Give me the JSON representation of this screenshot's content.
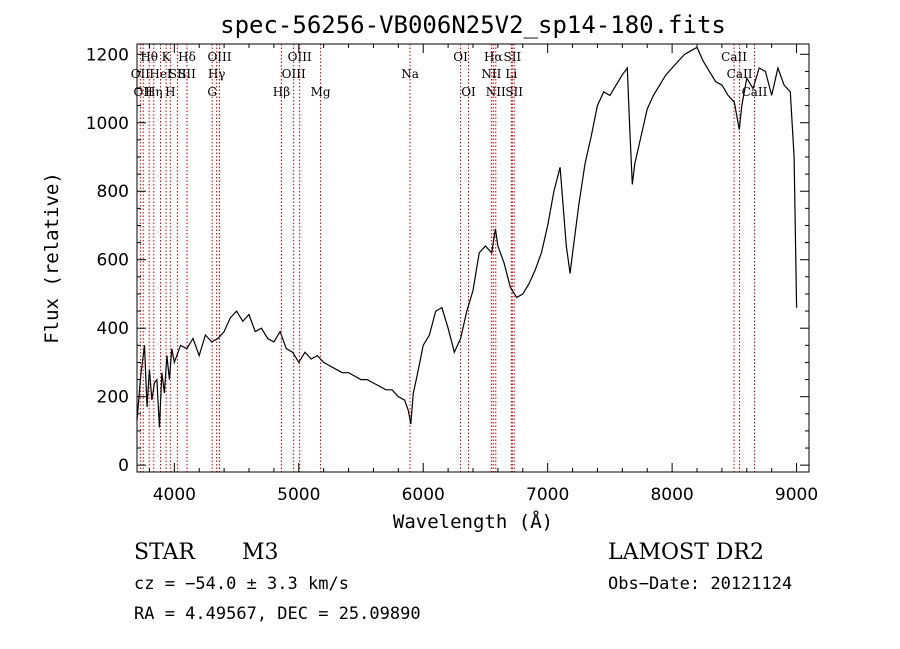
{
  "chart_data": {
    "type": "line",
    "title": "spec-56256-VB006N25V2_sp14-180.fits",
    "xlabel": "Wavelength (Å)",
    "ylabel": "Flux (relative)",
    "xlim": [
      3700,
      9100
    ],
    "ylim": [
      -20,
      1230
    ],
    "xticks": [
      4000,
      5000,
      6000,
      7000,
      8000,
      9000
    ],
    "yticks": [
      0,
      200,
      400,
      600,
      800,
      1000,
      1200
    ],
    "line_color": "#000000",
    "marker_color": "#cc0000",
    "grid": false,
    "series": [
      {
        "x": [
          3700,
          3730,
          3760,
          3780,
          3800,
          3820,
          3840,
          3860,
          3880,
          3900,
          3920,
          3940,
          3960,
          3980,
          4000,
          4050,
          4100,
          4150,
          4200,
          4250,
          4300,
          4350,
          4400,
          4450,
          4500,
          4550,
          4600,
          4650,
          4700,
          4750,
          4800,
          4850,
          4900,
          4950,
          5000,
          5050,
          5100,
          5150,
          5200,
          5250,
          5300,
          5350,
          5400,
          5450,
          5500,
          5550,
          5600,
          5650,
          5700,
          5750,
          5800,
          5850,
          5880,
          5900,
          5920,
          5950,
          6000,
          6050,
          6100,
          6150,
          6200,
          6250,
          6300,
          6350,
          6400,
          6450,
          6500,
          6550,
          6580,
          6600,
          6650,
          6700,
          6750,
          6800,
          6850,
          6900,
          6950,
          7000,
          7050,
          7100,
          7150,
          7180,
          7200,
          7250,
          7300,
          7350,
          7400,
          7450,
          7500,
          7550,
          7600,
          7640,
          7660,
          7680,
          7700,
          7750,
          7800,
          7850,
          7900,
          7950,
          8000,
          8050,
          8100,
          8150,
          8200,
          8250,
          8300,
          8350,
          8400,
          8450,
          8500,
          8520,
          8540,
          8560,
          8600,
          8650,
          8700,
          8750,
          8800,
          8850,
          8900,
          8950,
          8980,
          9000
        ],
        "y": [
          130,
          260,
          350,
          170,
          280,
          190,
          240,
          250,
          110,
          270,
          210,
          320,
          250,
          340,
          300,
          350,
          340,
          370,
          320,
          380,
          360,
          370,
          390,
          430,
          450,
          420,
          440,
          390,
          400,
          370,
          360,
          390,
          340,
          330,
          300,
          330,
          310,
          320,
          300,
          290,
          280,
          270,
          270,
          260,
          250,
          250,
          240,
          230,
          220,
          220,
          200,
          190,
          160,
          120,
          210,
          260,
          350,
          380,
          450,
          460,
          400,
          330,
          370,
          450,
          510,
          620,
          640,
          620,
          690,
          640,
          590,
          520,
          490,
          500,
          530,
          570,
          620,
          700,
          800,
          870,
          640,
          560,
          620,
          760,
          880,
          960,
          1050,
          1090,
          1080,
          1110,
          1140,
          1160,
          980,
          820,
          880,
          960,
          1040,
          1080,
          1110,
          1140,
          1160,
          1180,
          1200,
          1210,
          1220,
          1180,
          1150,
          1120,
          1110,
          1080,
          1060,
          1020,
          980,
          1050,
          1130,
          1100,
          1160,
          1150,
          1080,
          1160,
          1110,
          1090,
          900,
          460
        ]
      }
    ],
    "line_markers": [
      {
        "x": 3727,
        "label": "OII",
        "row": 2
      },
      {
        "x": 3750,
        "label": "OII",
        "row": 3
      },
      {
        "x": 3798,
        "label": "Hθ",
        "row": 1
      },
      {
        "x": 3835,
        "label": "Hη",
        "row": 3
      },
      {
        "x": 3889,
        "label": "HeI",
        "row": 2
      },
      {
        "x": 3934,
        "label": "K",
        "row": 1
      },
      {
        "x": 3968,
        "label": "H",
        "row": 3
      },
      {
        "x": 4026,
        "label": "SII",
        "row": 2
      },
      {
        "x": 4102,
        "label": "Hδ",
        "row": 1
      },
      {
        "x": 4102,
        "label": "SII",
        "row": 2
      },
      {
        "x": 4304,
        "label": "G",
        "row": 3
      },
      {
        "x": 4340,
        "label": "Hγ",
        "row": 2
      },
      {
        "x": 4363,
        "label": "OIII",
        "row": 1
      },
      {
        "x": 4861,
        "label": "Hβ",
        "row": 3
      },
      {
        "x": 4959,
        "label": "OIII",
        "row": 2
      },
      {
        "x": 5007,
        "label": "OIII",
        "row": 1
      },
      {
        "x": 5175,
        "label": "Mg",
        "row": 3
      },
      {
        "x": 5894,
        "label": "Na",
        "row": 2
      },
      {
        "x": 6300,
        "label": "OI",
        "row": 1
      },
      {
        "x": 6364,
        "label": "OI",
        "row": 3
      },
      {
        "x": 6548,
        "label": "NII",
        "row": 2
      },
      {
        "x": 6563,
        "label": "Hα",
        "row": 1
      },
      {
        "x": 6583,
        "label": "NII",
        "row": 3
      },
      {
        "x": 6708,
        "label": "Li",
        "row": 2
      },
      {
        "x": 6716,
        "label": "SII",
        "row": 1
      },
      {
        "x": 6731,
        "label": "SII",
        "row": 3
      },
      {
        "x": 8498,
        "label": "CaII",
        "row": 1
      },
      {
        "x": 8542,
        "label": "CaII",
        "row": 2
      },
      {
        "x": 8662,
        "label": "CaII",
        "row": 3
      }
    ]
  },
  "info": {
    "object_class": "STAR",
    "subclass": "M3",
    "survey": "LAMOST DR2",
    "cz": "cz = −54.0 ± 3.3 km/s",
    "obs_date": "Obs−Date: 20121124",
    "coords": "RA =   4.49567, DEC =  25.09890"
  }
}
